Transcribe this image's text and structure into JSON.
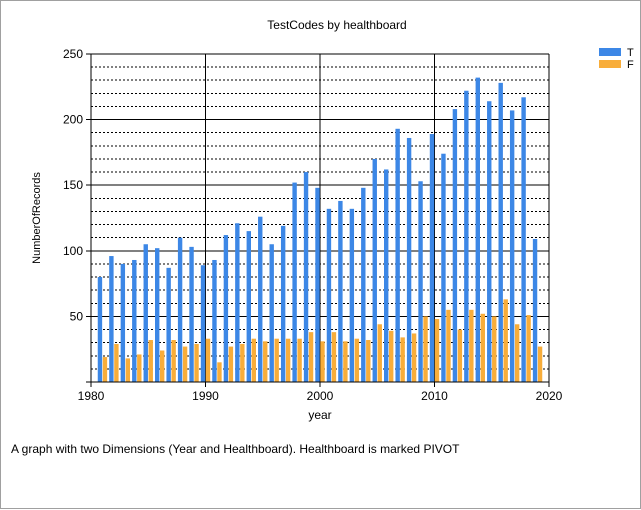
{
  "caption": "A graph with two Dimensions (Year and Healthboard).  Healthboard is marked PIVOT",
  "chart_data": {
    "type": "bar",
    "title": "TestCodes by healthboard",
    "xlabel": "year",
    "ylabel": "NumberOfRecords",
    "xlim": [
      1980,
      2020
    ],
    "ylim": [
      0,
      250
    ],
    "x_ticks": [
      1980,
      1990,
      2000,
      2010,
      2020
    ],
    "y_ticks": [
      50,
      100,
      150,
      200,
      250
    ],
    "x_tick_labels": [
      "1980",
      "1990",
      "2000",
      "2010",
      "2020"
    ],
    "y_tick_labels": [
      "50",
      "100",
      "150",
      "200",
      "250"
    ],
    "grid": true,
    "legend_position": "top-right",
    "x": [
      1981,
      1982,
      1983,
      1984,
      1985,
      1986,
      1987,
      1988,
      1989,
      1990,
      1991,
      1992,
      1993,
      1994,
      1995,
      1996,
      1997,
      1998,
      1999,
      2000,
      2001,
      2002,
      2003,
      2004,
      2005,
      2006,
      2007,
      2008,
      2009,
      2010,
      2011,
      2012,
      2013,
      2014,
      2015,
      2016,
      2017,
      2018,
      2019
    ],
    "series": [
      {
        "name": "T",
        "color": "#3c87e6",
        "values": [
          80,
          96,
          90,
          93,
          105,
          102,
          87,
          110,
          103,
          89,
          93,
          112,
          121,
          115,
          126,
          105,
          119,
          152,
          160,
          148,
          132,
          138,
          132,
          148,
          170,
          162,
          193,
          186,
          153,
          189,
          174,
          208,
          222,
          232,
          214,
          228,
          207,
          217,
          109
        ]
      },
      {
        "name": "F",
        "color": "#f8ad3a",
        "values": [
          19,
          29,
          18,
          21,
          32,
          24,
          32,
          27,
          29,
          33,
          15,
          27,
          29,
          33,
          31,
          33,
          33,
          33,
          38,
          31,
          38,
          31,
          33,
          32,
          44,
          39,
          34,
          37,
          50,
          48,
          55,
          40,
          55,
          52,
          50,
          63,
          44,
          51,
          27
        ]
      }
    ]
  }
}
